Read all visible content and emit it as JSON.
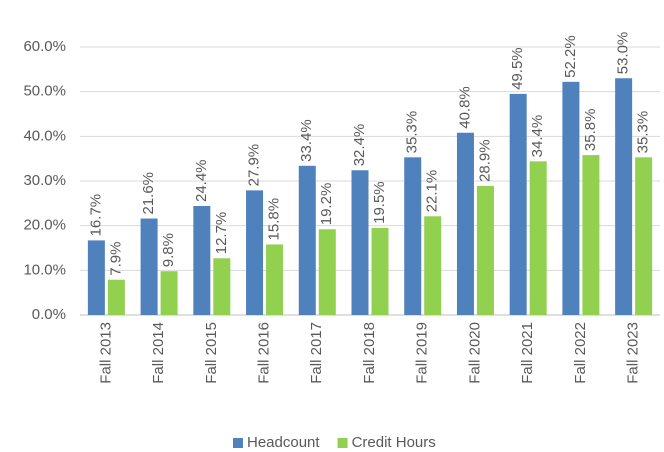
{
  "chart_data": {
    "type": "bar",
    "categories": [
      "Fall 2013",
      "Fall 2014",
      "Fall 2015",
      "Fall 2016",
      "Fall 2017",
      "Fall 2018",
      "Fall 2019",
      "Fall 2020",
      "Fall 2021",
      "Fall 2022",
      "Fall 2023"
    ],
    "series": [
      {
        "name": "Headcount",
        "color": "#4f81bd",
        "values": [
          16.7,
          21.6,
          24.4,
          27.9,
          33.4,
          32.4,
          35.3,
          40.8,
          49.5,
          52.2,
          53.0
        ],
        "value_labels": [
          "16.7%",
          "21.6%",
          "24.4%",
          "27.9%",
          "33.4%",
          "32.4%",
          "35.3%",
          "40.8%",
          "49.5%",
          "52.2%",
          "53.0%"
        ]
      },
      {
        "name": "Credit Hours",
        "color": "#92d050",
        "values": [
          7.9,
          9.8,
          12.7,
          15.8,
          19.2,
          19.5,
          22.1,
          28.9,
          34.4,
          35.8,
          35.3
        ],
        "value_labels": [
          "7.9%",
          "9.8%",
          "12.7%",
          "15.8%",
          "19.2%",
          "19.5%",
          "22.1%",
          "28.9%",
          "34.4%",
          "35.8%",
          "35.3%"
        ]
      }
    ],
    "ylim": [
      0,
      60
    ],
    "yticks": [
      {
        "value": 0,
        "label": "0.0%"
      },
      {
        "value": 10,
        "label": "10.0%"
      },
      {
        "value": 20,
        "label": "20.0%"
      },
      {
        "value": 30,
        "label": "30.0%"
      },
      {
        "value": 40,
        "label": "40.0%"
      },
      {
        "value": 50,
        "label": "50.0%"
      },
      {
        "value": 60,
        "label": "60.0%"
      }
    ],
    "grid": true,
    "legend": "bottom"
  }
}
